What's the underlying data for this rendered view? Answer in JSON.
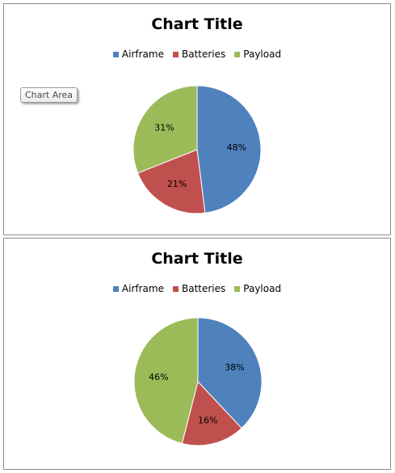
{
  "tooltip": "Chart Area",
  "chart_data": [
    {
      "type": "pie",
      "title": "Chart Title",
      "legend_position": "top",
      "categories": [
        "Airframe",
        "Batteries",
        "Payload"
      ],
      "values": [
        48,
        21,
        31
      ],
      "labels": [
        "48%",
        "21%",
        "31%"
      ],
      "colors": [
        "#4f81bd",
        "#c0504d",
        "#9bbb59"
      ]
    },
    {
      "type": "pie",
      "title": "Chart Title",
      "legend_position": "top",
      "categories": [
        "Airframe",
        "Batteries",
        "Payload"
      ],
      "values": [
        38,
        16,
        46
      ],
      "labels": [
        "38%",
        "16%",
        "46%"
      ],
      "colors": [
        "#4f81bd",
        "#c0504d",
        "#9bbb59"
      ]
    }
  ]
}
